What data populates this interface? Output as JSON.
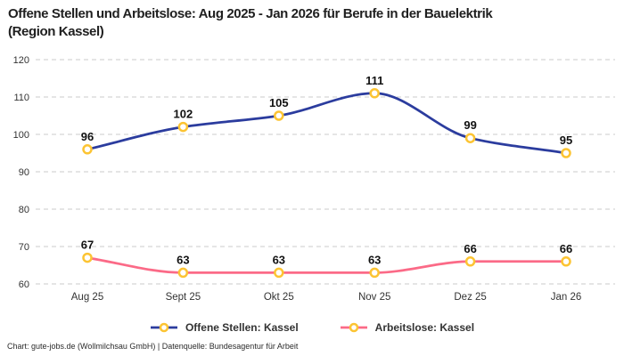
{
  "title_lines": [
    "Offene Stellen und Arbeitslose: Aug 2025 - Jan 2026 für Berufe in der Bauelektrik",
    "(Region Kassel)"
  ],
  "footer": "Chart: gute-jobs.de (Wollmilchsau GmbH) | Datenquelle: Bundesagentur für Arbeit",
  "legend": [
    {
      "label": "Offene Stellen: Kassel",
      "color": "#2b3c9e"
    },
    {
      "label": "Arbeitslose: Kassel",
      "color": "#fb6a87"
    }
  ],
  "colors": {
    "open_positions_line": "#2b3c9e",
    "unemployed_line": "#fb6a87",
    "marker_ring": "#fcc433",
    "marker_fill": "#ffffff",
    "gridline": "#cbcbcb",
    "axis_text": "#333333",
    "data_label": "#111111"
  },
  "chart_data": {
    "type": "line",
    "title": "Offene Stellen und Arbeitslose: Aug 2025 - Jan 2026 für Berufe in der Bauelektrik (Region Kassel)",
    "categories": [
      "Aug 25",
      "Sept 25",
      "Okt 25",
      "Nov 25",
      "Dez 25",
      "Jan 26"
    ],
    "series": [
      {
        "name": "Offene Stellen: Kassel",
        "color": "#2b3c9e",
        "values": [
          96,
          102,
          105,
          111,
          99,
          95
        ]
      },
      {
        "name": "Arbeitslose: Kassel",
        "color": "#fb6a87",
        "values": [
          67,
          63,
          63,
          63,
          66,
          66
        ]
      }
    ],
    "ylim": [
      60,
      120
    ],
    "yticks": [
      120,
      110,
      100,
      90,
      80,
      70,
      60
    ],
    "grid": "horizontal-dashed",
    "legend_position": "bottom",
    "interpolation": "monotone",
    "marker": {
      "shape": "circle",
      "stroke": "#fcc433",
      "fill": "#ffffff"
    },
    "data_labels": "above-points"
  }
}
